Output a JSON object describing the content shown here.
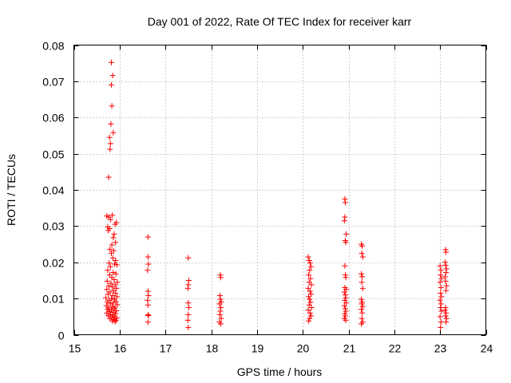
{
  "chart_data": {
    "type": "scatter",
    "title": "Day 001 of 2022, Rate Of TEC Index for receiver karr",
    "xlabel": "GPS time / hours",
    "ylabel": "ROTI / TECUs",
    "xlim": [
      15,
      24
    ],
    "ylim": [
      0,
      0.08
    ],
    "xticks": [
      "15",
      "16",
      "17",
      "18",
      "19",
      "20",
      "21",
      "22",
      "23",
      "24"
    ],
    "yticks": [
      "0",
      "0.01",
      "0.02",
      "0.03",
      "0.04",
      "0.05",
      "0.06",
      "0.07",
      "0.08"
    ],
    "grid": true,
    "marker": "+",
    "color": "#ff0000",
    "points": [
      [
        15.82,
        0.0752
      ],
      [
        15.85,
        0.0716
      ],
      [
        15.82,
        0.069
      ],
      [
        15.83,
        0.0632
      ],
      [
        15.81,
        0.0582
      ],
      [
        15.86,
        0.0558
      ],
      [
        15.78,
        0.0545
      ],
      [
        15.8,
        0.0528
      ],
      [
        15.79,
        0.0512
      ],
      [
        15.76,
        0.0435
      ],
      [
        15.72,
        0.0328
      ],
      [
        15.76,
        0.0325
      ],
      [
        15.84,
        0.033
      ],
      [
        15.8,
        0.0318
      ],
      [
        15.74,
        0.0298
      ],
      [
        15.78,
        0.0293
      ],
      [
        15.75,
        0.0288
      ],
      [
        15.9,
        0.0305
      ],
      [
        15.93,
        0.031
      ],
      [
        15.88,
        0.0278
      ],
      [
        15.86,
        0.0268
      ],
      [
        15.91,
        0.0255
      ],
      [
        15.83,
        0.0248
      ],
      [
        15.79,
        0.0236
      ],
      [
        15.87,
        0.0232
      ],
      [
        15.82,
        0.0225
      ],
      [
        15.85,
        0.0212
      ],
      [
        15.91,
        0.0205
      ],
      [
        15.77,
        0.0198
      ],
      [
        15.89,
        0.0195
      ],
      [
        15.94,
        0.0193
      ],
      [
        15.8,
        0.0188
      ],
      [
        15.74,
        0.0178
      ],
      [
        15.86,
        0.0172
      ],
      [
        15.92,
        0.0168
      ],
      [
        15.78,
        0.0165
      ],
      [
        15.83,
        0.0158
      ],
      [
        15.88,
        0.0152
      ],
      [
        15.73,
        0.0148
      ],
      [
        15.95,
        0.0145
      ],
      [
        15.81,
        0.0142
      ],
      [
        15.9,
        0.0138
      ],
      [
        15.76,
        0.0135
      ],
      [
        15.84,
        0.0132
      ],
      [
        15.93,
        0.0128
      ],
      [
        15.72,
        0.0125
      ],
      [
        15.87,
        0.0122
      ],
      [
        15.79,
        0.0118
      ],
      [
        15.91,
        0.0115
      ],
      [
        15.75,
        0.0112
      ],
      [
        15.85,
        0.0108
      ],
      [
        15.94,
        0.0105
      ],
      [
        15.7,
        0.0102
      ],
      [
        15.82,
        0.01
      ],
      [
        15.89,
        0.0098
      ],
      [
        15.77,
        0.0095
      ],
      [
        15.92,
        0.0092
      ],
      [
        15.73,
        0.009
      ],
      [
        15.86,
        0.0088
      ],
      [
        15.8,
        0.0085
      ],
      [
        15.95,
        0.0083
      ],
      [
        15.71,
        0.008
      ],
      [
        15.84,
        0.0078
      ],
      [
        15.9,
        0.0076
      ],
      [
        15.76,
        0.0074
      ],
      [
        15.88,
        0.0072
      ],
      [
        15.74,
        0.007
      ],
      [
        15.82,
        0.0068
      ],
      [
        15.93,
        0.0066
      ],
      [
        15.78,
        0.0064
      ],
      [
        15.86,
        0.0062
      ],
      [
        15.72,
        0.006
      ],
      [
        15.91,
        0.0058
      ],
      [
        15.8,
        0.0056
      ],
      [
        15.85,
        0.0054
      ],
      [
        15.75,
        0.0052
      ],
      [
        15.89,
        0.005
      ],
      [
        15.83,
        0.0048
      ],
      [
        15.94,
        0.0046
      ],
      [
        15.79,
        0.0044
      ],
      [
        15.87,
        0.0042
      ],
      [
        15.92,
        0.004
      ],
      [
        15.84,
        0.0038
      ],
      [
        15.9,
        0.0036
      ],
      [
        16.62,
        0.027
      ],
      [
        16.62,
        0.0215
      ],
      [
        16.63,
        0.0195
      ],
      [
        16.61,
        0.0178
      ],
      [
        16.62,
        0.012
      ],
      [
        16.63,
        0.0108
      ],
      [
        16.61,
        0.0095
      ],
      [
        16.62,
        0.0082
      ],
      [
        16.62,
        0.0055
      ],
      [
        16.63,
        0.0053
      ],
      [
        16.62,
        0.0035
      ],
      [
        17.5,
        0.0212
      ],
      [
        17.51,
        0.015
      ],
      [
        17.5,
        0.0138
      ],
      [
        17.49,
        0.0128
      ],
      [
        17.5,
        0.0088
      ],
      [
        17.51,
        0.0075
      ],
      [
        17.5,
        0.0055
      ],
      [
        17.49,
        0.004
      ],
      [
        17.5,
        0.002
      ],
      [
        18.2,
        0.0165
      ],
      [
        18.21,
        0.0158
      ],
      [
        18.19,
        0.0108
      ],
      [
        18.2,
        0.0098
      ],
      [
        18.22,
        0.009
      ],
      [
        18.18,
        0.0085
      ],
      [
        18.21,
        0.0075
      ],
      [
        18.2,
        0.0065
      ],
      [
        18.19,
        0.0055
      ],
      [
        18.22,
        0.0045
      ],
      [
        18.18,
        0.0035
      ],
      [
        18.21,
        0.003
      ],
      [
        20.12,
        0.0215
      ],
      [
        20.14,
        0.0205
      ],
      [
        20.16,
        0.0198
      ],
      [
        20.18,
        0.0188
      ],
      [
        20.15,
        0.0178
      ],
      [
        20.13,
        0.0165
      ],
      [
        20.17,
        0.0155
      ],
      [
        20.14,
        0.0145
      ],
      [
        20.19,
        0.0138
      ],
      [
        20.12,
        0.0128
      ],
      [
        20.16,
        0.012
      ],
      [
        20.18,
        0.0112
      ],
      [
        20.13,
        0.0105
      ],
      [
        20.15,
        0.0098
      ],
      [
        20.17,
        0.009
      ],
      [
        20.14,
        0.0082
      ],
      [
        20.19,
        0.0075
      ],
      [
        20.12,
        0.0068
      ],
      [
        20.16,
        0.006
      ],
      [
        20.18,
        0.0052
      ],
      [
        20.15,
        0.0045
      ],
      [
        20.13,
        0.0038
      ],
      [
        20.92,
        0.0375
      ],
      [
        20.93,
        0.0365
      ],
      [
        20.92,
        0.0325
      ],
      [
        20.91,
        0.0315
      ],
      [
        20.95,
        0.0278
      ],
      [
        20.93,
        0.026
      ],
      [
        20.94,
        0.0255
      ],
      [
        20.92,
        0.019
      ],
      [
        20.93,
        0.0165
      ],
      [
        20.94,
        0.0158
      ],
      [
        20.92,
        0.013
      ],
      [
        20.95,
        0.0125
      ],
      [
        20.91,
        0.0118
      ],
      [
        20.93,
        0.011
      ],
      [
        20.94,
        0.0102
      ],
      [
        20.92,
        0.0095
      ],
      [
        20.95,
        0.0088
      ],
      [
        20.91,
        0.008
      ],
      [
        20.93,
        0.0072
      ],
      [
        20.94,
        0.0065
      ],
      [
        20.92,
        0.0058
      ],
      [
        20.93,
        0.0052
      ],
      [
        20.91,
        0.0045
      ],
      [
        20.94,
        0.004
      ],
      [
        21.28,
        0.025
      ],
      [
        21.3,
        0.0245
      ],
      [
        21.29,
        0.0225
      ],
      [
        21.31,
        0.0215
      ],
      [
        21.28,
        0.0168
      ],
      [
        21.3,
        0.016
      ],
      [
        21.29,
        0.0145
      ],
      [
        21.31,
        0.0128
      ],
      [
        21.28,
        0.0098
      ],
      [
        21.3,
        0.009
      ],
      [
        21.29,
        0.0085
      ],
      [
        21.31,
        0.0078
      ],
      [
        21.28,
        0.007
      ],
      [
        21.3,
        0.006
      ],
      [
        21.29,
        0.0045
      ],
      [
        21.31,
        0.0035
      ],
      [
        21.28,
        0.003
      ],
      [
        23.0,
        0.019
      ],
      [
        23.02,
        0.0178
      ],
      [
        23.01,
        0.0165
      ],
      [
        23.03,
        0.0155
      ],
      [
        23.0,
        0.0145
      ],
      [
        23.02,
        0.013
      ],
      [
        23.01,
        0.0115
      ],
      [
        23.03,
        0.0105
      ],
      [
        23.0,
        0.0095
      ],
      [
        23.02,
        0.0085
      ],
      [
        23.01,
        0.0075
      ],
      [
        23.03,
        0.0065
      ],
      [
        23.0,
        0.005
      ],
      [
        23.02,
        0.0035
      ],
      [
        23.01,
        0.002
      ],
      [
        23.12,
        0.0235
      ],
      [
        23.13,
        0.0228
      ],
      [
        23.11,
        0.02
      ],
      [
        23.12,
        0.0192
      ],
      [
        23.14,
        0.0182
      ],
      [
        23.13,
        0.0172
      ],
      [
        23.11,
        0.016
      ],
      [
        23.12,
        0.0148
      ],
      [
        23.14,
        0.0135
      ],
      [
        23.13,
        0.0122
      ],
      [
        23.12,
        0.0075
      ],
      [
        23.11,
        0.0068
      ],
      [
        23.13,
        0.006
      ],
      [
        23.12,
        0.0052
      ],
      [
        23.14,
        0.0045
      ],
      [
        23.13,
        0.0035
      ]
    ]
  }
}
